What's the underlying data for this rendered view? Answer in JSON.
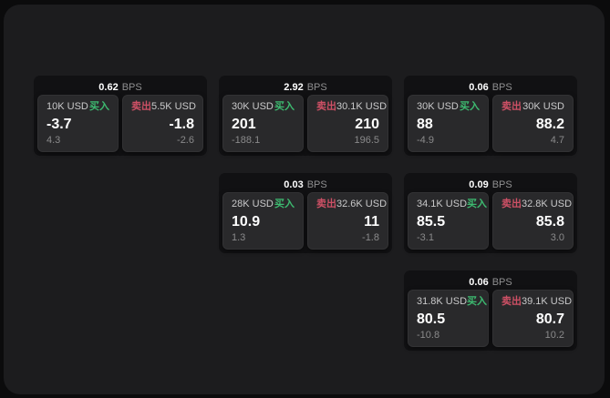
{
  "labels": {
    "buy": "买入",
    "sell": "卖出",
    "bps_suffix": "BPS"
  },
  "colors": {
    "page_bg": "#0b0b0c",
    "panel_bg": "#1c1c1e",
    "card_bg": "#111113",
    "pane_bg": "#29292b",
    "buy_green": "#3dba70",
    "sell_red": "#cd5065",
    "value_white": "#ffffff",
    "amount_gray": "#c9c9ca",
    "delta_gray": "#8a8a8b"
  },
  "cards": [
    {
      "bps": "0.62",
      "buy": {
        "amount": "10K USD",
        "value": "-3.7",
        "delta": "4.3"
      },
      "sell": {
        "amount": "5.5K USD",
        "value": "-1.8",
        "delta": "-2.6"
      }
    },
    {
      "bps": "2.92",
      "buy": {
        "amount": "30K USD",
        "value": "201",
        "delta": "-188.1"
      },
      "sell": {
        "amount": "30.1K USD",
        "value": "210",
        "delta": "196.5"
      }
    },
    {
      "bps": "0.06",
      "buy": {
        "amount": "30K USD",
        "value": "88",
        "delta": "-4.9"
      },
      "sell": {
        "amount": "30K USD",
        "value": "88.2",
        "delta": "4.7"
      }
    },
    {
      "bps": "0.03",
      "buy": {
        "amount": "28K USD",
        "value": "10.9",
        "delta": "1.3"
      },
      "sell": {
        "amount": "32.6K USD",
        "value": "11",
        "delta": "-1.8"
      }
    },
    {
      "bps": "0.09",
      "buy": {
        "amount": "34.1K USD",
        "value": "85.5",
        "delta": "-3.1"
      },
      "sell": {
        "amount": "32.8K USD",
        "value": "85.8",
        "delta": "3.0"
      }
    },
    {
      "bps": "0.06",
      "buy": {
        "amount": "31.8K USD",
        "value": "80.5",
        "delta": "-10.8"
      },
      "sell": {
        "amount": "39.1K USD",
        "value": "80.7",
        "delta": "10.2"
      }
    }
  ]
}
